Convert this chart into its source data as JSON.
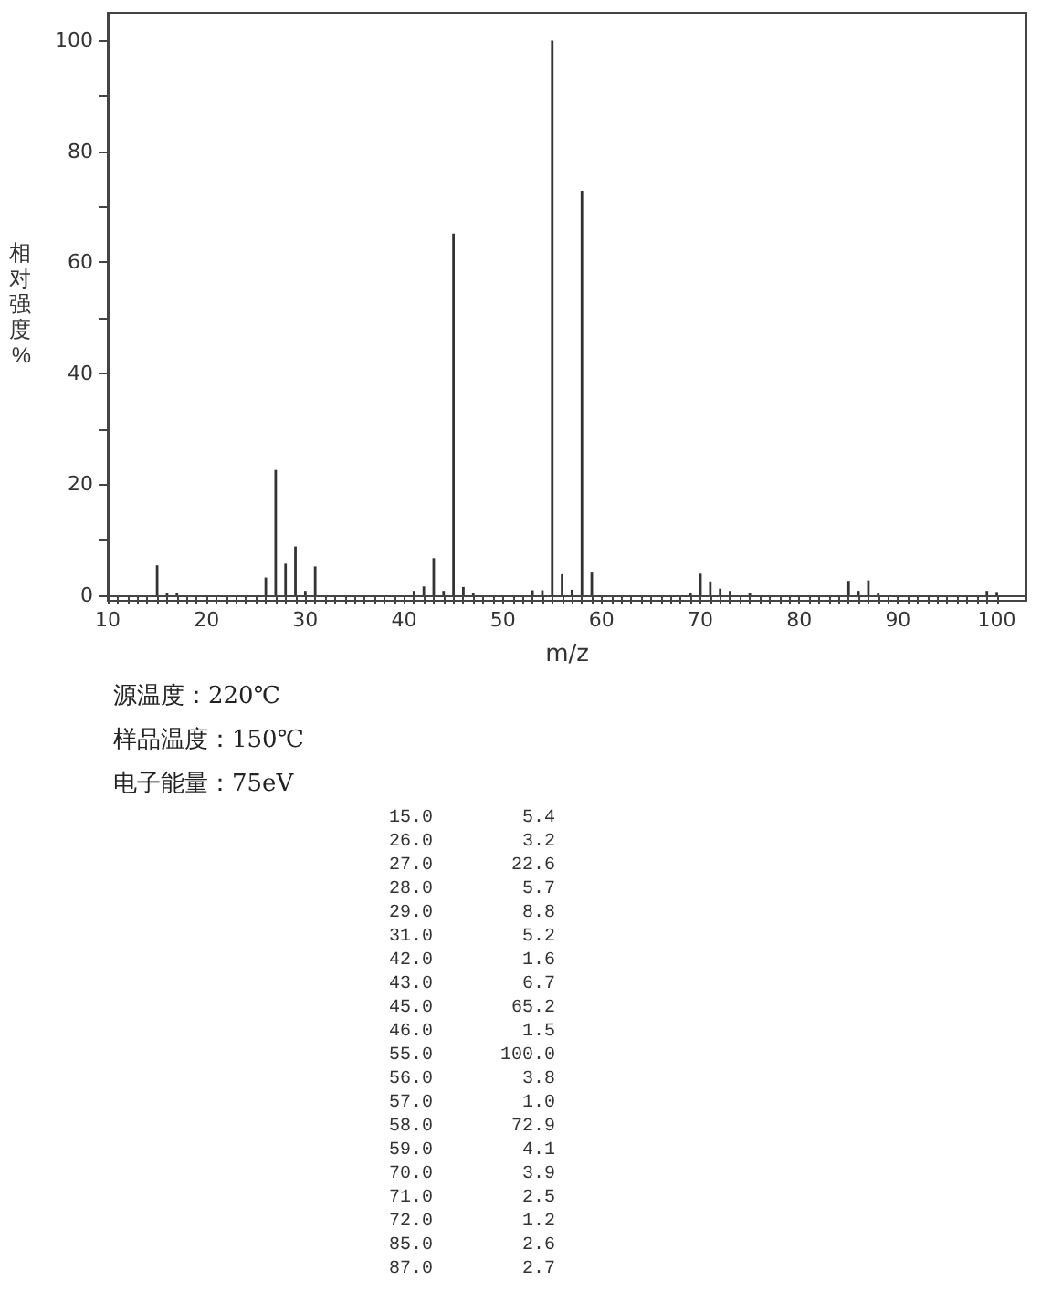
{
  "chart_data": [
    {
      "type": "bar",
      "xlabel": "m/z",
      "ylabel": "相对强度%",
      "x": [
        15,
        16,
        17,
        26,
        27,
        28,
        29,
        30,
        31,
        41,
        42,
        43,
        44,
        45,
        46,
        47,
        53,
        54,
        55,
        56,
        57,
        58,
        59,
        69,
        70,
        71,
        72,
        73,
        75,
        85,
        86,
        87,
        88,
        99,
        100
      ],
      "values": [
        5.4,
        0.4,
        0.5,
        3.2,
        22.6,
        5.7,
        8.8,
        0.8,
        5.2,
        0.8,
        1.6,
        6.7,
        0.8,
        65.2,
        1.5,
        0.4,
        0.9,
        0.9,
        100.0,
        3.8,
        1.0,
        72.9,
        4.1,
        0.5,
        3.9,
        2.5,
        1.2,
        0.8,
        0.5,
        2.6,
        0.8,
        2.7,
        0.4,
        0.8,
        0.6
      ],
      "color": "#333333",
      "xlim": [
        10,
        103
      ],
      "ylim": [
        0,
        105
      ],
      "xticks": [
        10,
        {
          "value": 11,
          "label": null
        },
        {
          "value": 12,
          "label": null
        },
        {
          "value": 13,
          "label": null
        },
        {
          "value": 14,
          "label": null
        },
        {
          "value": 15,
          "label": null
        },
        {
          "value": 16,
          "label": null
        },
        {
          "value": 17,
          "label": null
        },
        {
          "value": 18,
          "label": null
        },
        {
          "value": 19,
          "label": null
        },
        20,
        {
          "value": 21,
          "label": null
        },
        {
          "value": 22,
          "label": null
        },
        {
          "value": 23,
          "label": null
        },
        {
          "value": 24,
          "label": null
        },
        {
          "value": 25,
          "label": null
        },
        {
          "value": 26,
          "label": null
        },
        {
          "value": 27,
          "label": null
        },
        {
          "value": 28,
          "label": null
        },
        {
          "value": 29,
          "label": null
        },
        30,
        {
          "value": 31,
          "label": null
        },
        {
          "value": 32,
          "label": null
        },
        {
          "value": 33,
          "label": null
        },
        {
          "value": 34,
          "label": null
        },
        {
          "value": 35,
          "label": null
        },
        {
          "value": 36,
          "label": null
        },
        {
          "value": 37,
          "label": null
        },
        {
          "value": 38,
          "label": null
        },
        {
          "value": 39,
          "label": null
        },
        40,
        {
          "value": 41,
          "label": null
        },
        {
          "value": 42,
          "label": null
        },
        {
          "value": 43,
          "label": null
        },
        {
          "value": 44,
          "label": null
        },
        {
          "value": 45,
          "label": null
        },
        {
          "value": 46,
          "label": null
        },
        {
          "value": 47,
          "label": null
        },
        {
          "value": 48,
          "label": null
        },
        {
          "value": 49,
          "label": null
        },
        50,
        {
          "value": 51,
          "label": null
        },
        {
          "value": 52,
          "label": null
        },
        {
          "value": 53,
          "label": null
        },
        {
          "value": 54,
          "label": null
        },
        {
          "value": 55,
          "label": null
        },
        {
          "value": 56,
          "label": null
        },
        {
          "value": 57,
          "label": null
        },
        {
          "value": 58,
          "label": null
        },
        {
          "value": 59,
          "label": null
        },
        60,
        {
          "value": 61,
          "label": null
        },
        {
          "value": 62,
          "label": null
        },
        {
          "value": 63,
          "label": null
        },
        {
          "value": 64,
          "label": null
        },
        {
          "value": 65,
          "label": null
        },
        {
          "value": 66,
          "label": null
        },
        {
          "value": 67,
          "label": null
        },
        {
          "value": 68,
          "label": null
        },
        {
          "value": 69,
          "label": null
        },
        70,
        {
          "value": 71,
          "label": null
        },
        {
          "value": 72,
          "label": null
        },
        {
          "value": 73,
          "label": null
        },
        {
          "value": 74,
          "label": null
        },
        {
          "value": 75,
          "label": null
        },
        {
          "value": 76,
          "label": null
        },
        {
          "value": 77,
          "label": null
        },
        {
          "value": 78,
          "label": null
        },
        {
          "value": 79,
          "label": null
        },
        80,
        {
          "value": 81,
          "label": null
        },
        {
          "value": 82,
          "label": null
        },
        {
          "value": 83,
          "label": null
        },
        {
          "value": 84,
          "label": null
        },
        {
          "value": 85,
          "label": null
        },
        {
          "value": 86,
          "label": null
        },
        {
          "value": 87,
          "label": null
        },
        {
          "value": 88,
          "label": null
        },
        {
          "value": 89,
          "label": null
        },
        90,
        {
          "value": 91,
          "label": null
        },
        {
          "value": 92,
          "label": null
        },
        {
          "value": 93,
          "label": null
        },
        {
          "value": 94,
          "label": null
        },
        {
          "value": 95,
          "label": null
        },
        {
          "value": 96,
          "label": null
        },
        {
          "value": 97,
          "label": null
        },
        {
          "value": 98,
          "label": null
        },
        {
          "value": 99,
          "label": null
        },
        100
      ],
      "yticks": [
        0,
        {
          "value": 10,
          "label": null
        },
        20,
        {
          "value": 30,
          "label": null
        },
        40,
        {
          "value": 50,
          "label": null
        },
        60,
        {
          "value": 70,
          "label": null
        },
        80,
        {
          "value": 90,
          "label": null
        },
        100
      ],
      "annotations": [
        "源温度：220℃",
        "样品温度：150℃",
        "电子能量：75eV"
      ]
    },
    {
      "type": "other",
      "categories": [
        "15.0",
        "26.0",
        "27.0",
        "28.0",
        "29.0",
        "31.0",
        "42.0",
        "43.0",
        "45.0",
        "46.0",
        "55.0",
        "56.0",
        "57.0",
        "58.0",
        "59.0",
        "70.0",
        "71.0",
        "72.0",
        "85.0",
        "87.0"
      ],
      "values": [
        5.4,
        3.2,
        22.6,
        5.7,
        8.8,
        5.2,
        1.6,
        6.7,
        65.2,
        1.5,
        100.0,
        3.8,
        1.0,
        72.9,
        4.1,
        3.9,
        2.5,
        1.2,
        2.6,
        2.7
      ],
      "value_labels": [
        "5.4",
        "3.2",
        "22.6",
        "5.7",
        "8.8",
        "5.2",
        "1.6",
        "6.7",
        "65.2",
        "1.5",
        "100.0",
        "3.8",
        "1.0",
        "72.9",
        "4.1",
        "3.9",
        "2.5",
        "1.2",
        "2.6",
        "2.7"
      ]
    }
  ]
}
